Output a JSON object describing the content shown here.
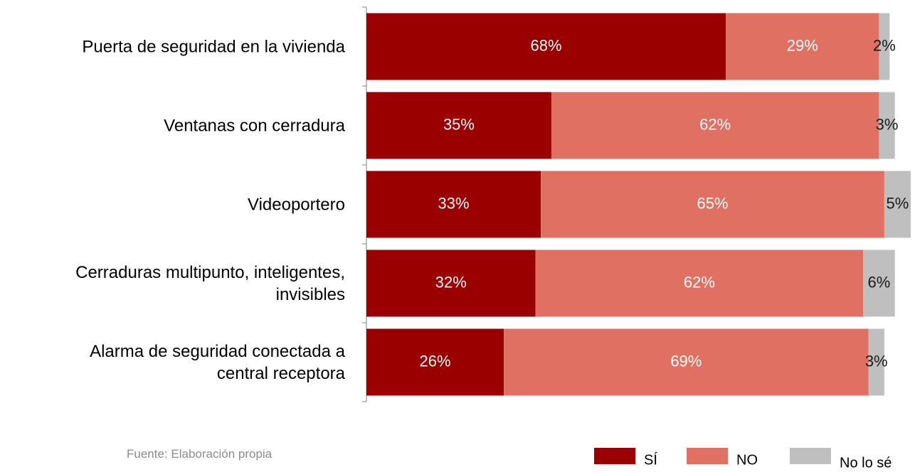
{
  "chart_data": {
    "type": "stacked-barh",
    "categories": [
      "Puerta de seguridad en la vivienda",
      "Ventanas con cerradura",
      "Videoportero",
      "Cerraduras multipunto, inteligentes,\ninvisibles",
      "Alarma de seguridad conectada a\ncentral receptora"
    ],
    "series": [
      {
        "name": "SÍ",
        "color": "#9b0000",
        "values": [
          68,
          35,
          33,
          32,
          26
        ],
        "value_labels": [
          "68%",
          "35%",
          "33%",
          "32%",
          "26%"
        ]
      },
      {
        "name": "NO",
        "color": "#e07062",
        "values": [
          29,
          62,
          65,
          62,
          69
        ],
        "value_labels": [
          "29%",
          "62%",
          "65%",
          "62%",
          "69%"
        ]
      },
      {
        "name": "No lo sé",
        "color": "#bfbfbf",
        "values": [
          2,
          3,
          5,
          6,
          3
        ],
        "value_labels": [
          "2%",
          "3%",
          "5%",
          "6%",
          "3%"
        ]
      }
    ],
    "source": "Fuente: Elaboración propia"
  }
}
